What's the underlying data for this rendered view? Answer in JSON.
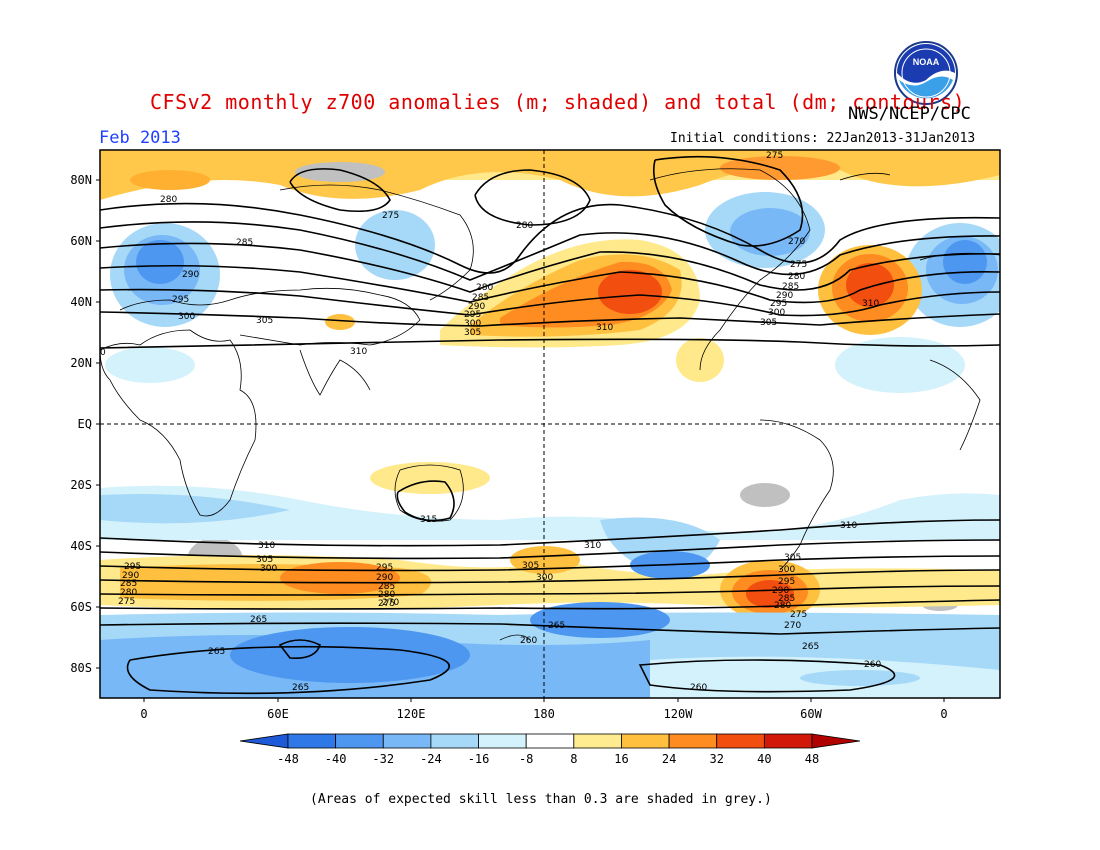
{
  "title": "CFSv2 monthly z700 anomalies (m; shaded) and total (dm; contours)",
  "agency": "NWS/NCEP/CPC",
  "logo_text": "NOAA",
  "month": "Feb 2013",
  "initial_conditions": "Initial conditions: 22Jan2013-31Jan2013",
  "lat_ticks": [
    "80N",
    "60N",
    "40N",
    "20N",
    "EQ",
    "20S",
    "40S",
    "60S",
    "80S"
  ],
  "lon_ticks": [
    "0",
    "60E",
    "120E",
    "180",
    "120W",
    "60W",
    "0"
  ],
  "colorbar": {
    "labels": [
      "-48",
      "-40",
      "-32",
      "-24",
      "-16",
      "-8",
      "8",
      "16",
      "24",
      "32",
      "40",
      "48"
    ],
    "colors": [
      "#1e5ad8",
      "#2f78e8",
      "#4d97f0",
      "#78b8f6",
      "#a6d8f8",
      "#d4f2fb",
      "#ffffff",
      "#ffec90",
      "#ffc040",
      "#ff8c20",
      "#f24e10",
      "#d21808",
      "#b00000"
    ]
  },
  "footnote": "(Areas of expected skill less than 0.3 are shaded in grey.)",
  "contour_labels": [
    "280",
    "275",
    "285",
    "290",
    "295",
    "300",
    "305",
    "310",
    "0",
    "270",
    "315",
    "265",
    "260"
  ]
}
